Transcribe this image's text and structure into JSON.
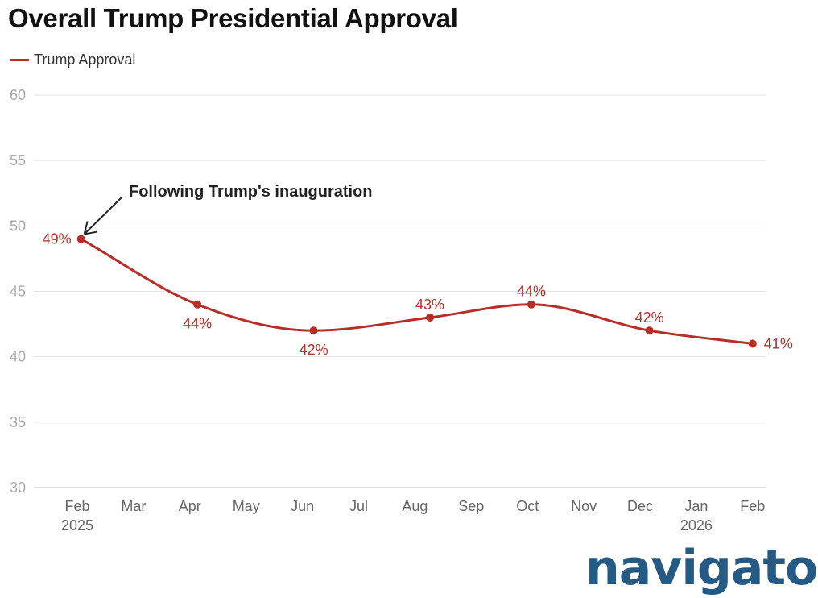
{
  "chart_data": {
    "type": "line",
    "title": "Overall Trump Presidential Approval",
    "xlabel": "",
    "ylabel": "",
    "ylim": [
      30,
      60
    ],
    "yticks": [
      30,
      35,
      40,
      45,
      50,
      55,
      60
    ],
    "xlim": [
      "2025-02-01",
      "2026-02-01"
    ],
    "xtick_labels": [
      {
        "label": "Feb",
        "year": "2025"
      },
      {
        "label": "Mar",
        "year": ""
      },
      {
        "label": "Apr",
        "year": ""
      },
      {
        "label": "May",
        "year": ""
      },
      {
        "label": "Jun",
        "year": ""
      },
      {
        "label": "Jul",
        "year": ""
      },
      {
        "label": "Aug",
        "year": ""
      },
      {
        "label": "Sep",
        "year": ""
      },
      {
        "label": "Oct",
        "year": ""
      },
      {
        "label": "Nov",
        "year": ""
      },
      {
        "label": "Dec",
        "year": ""
      },
      {
        "label": "Jan",
        "year": "2026"
      },
      {
        "label": "Feb",
        "year": ""
      }
    ],
    "grid": true,
    "legend_placement": "top-left",
    "series": [
      {
        "name": "Trump Approval",
        "color": "#b92d28",
        "points": [
          {
            "x": "2025-02-03",
            "y": 49,
            "label": "49%"
          },
          {
            "x": "2025-04-05",
            "y": 44,
            "label": "44%"
          },
          {
            "x": "2025-06-07",
            "y": 42,
            "label": "42%"
          },
          {
            "x": "2025-08-09",
            "y": 43,
            "label": "43%"
          },
          {
            "x": "2025-10-03",
            "y": 44,
            "label": "44%"
          },
          {
            "x": "2025-12-06",
            "y": 42,
            "label": "42%"
          },
          {
            "x": "2026-02-01",
            "y": 41,
            "label": "41%"
          }
        ]
      }
    ],
    "annotations": [
      {
        "text": "Following Trump's inauguration",
        "x": "2025-02-03",
        "y": 49
      }
    ]
  },
  "logo": {
    "text": "navigator",
    "mark": "*"
  }
}
